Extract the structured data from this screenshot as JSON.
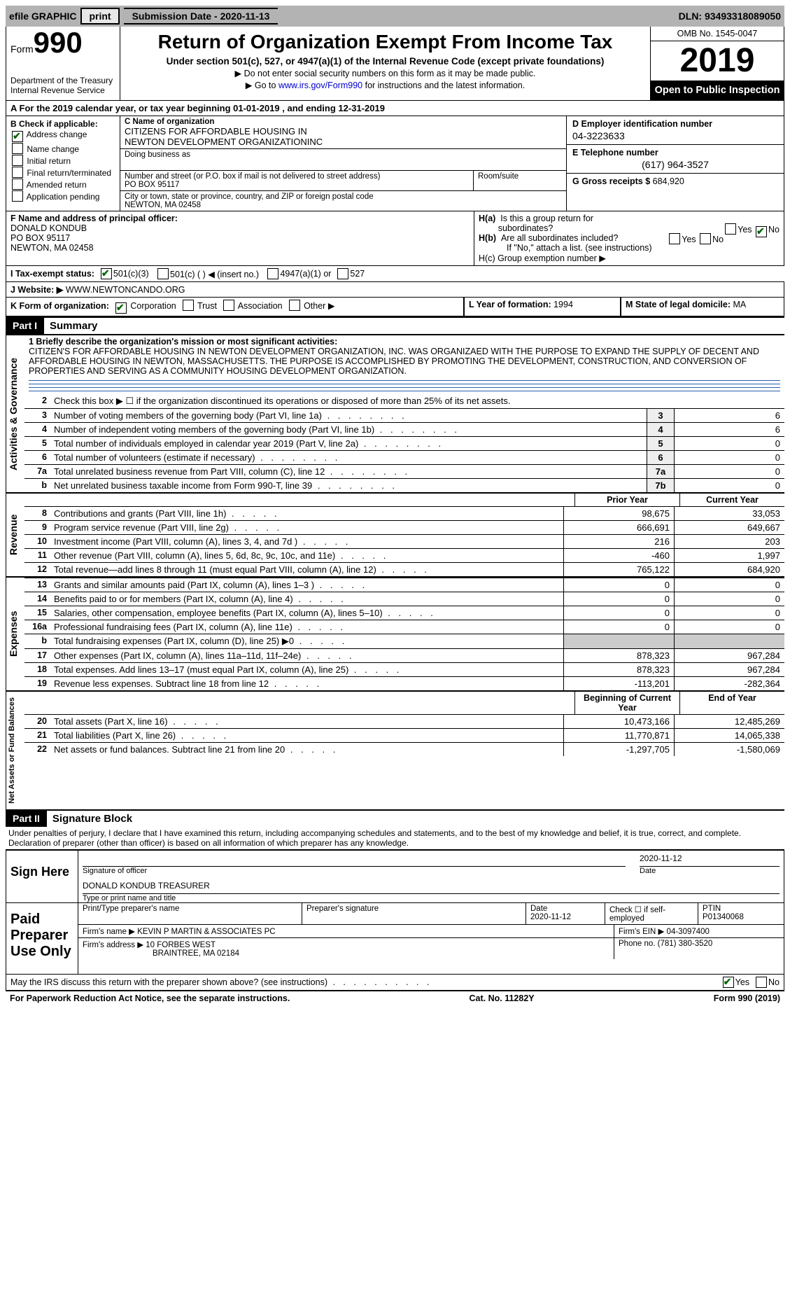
{
  "topbar": {
    "efile": "efile GRAPHIC",
    "print": "print",
    "submission_label": "Submission Date - ",
    "submission_date": "2020-11-13",
    "dln_label": "DLN: ",
    "dln": "93493318089050"
  },
  "header": {
    "form_label": "Form",
    "form_number": "990",
    "dept": "Department of the Treasury\nInternal Revenue Service",
    "title": "Return of Organization Exempt From Income Tax",
    "subtitle": "Under section 501(c), 527, or 4947(a)(1) of the Internal Revenue Code (except private foundations)",
    "instr1": "▶ Do not enter social security numbers on this form as it may be made public.",
    "instr2_pre": "▶ Go to ",
    "instr2_link": "www.irs.gov/Form990",
    "instr2_post": " for instructions and the latest information.",
    "omb": "OMB No. 1545-0047",
    "year": "2019",
    "open_public": "Open to Public Inspection"
  },
  "lineA": {
    "prefix": "A For the 2019 calendar year, or tax year beginning ",
    "begin": "01-01-2019",
    "mid": "  , and ending ",
    "end": "12-31-2019"
  },
  "blockB": {
    "header": "B Check if applicable:",
    "opts": {
      "address_change": "Address change",
      "name_change": "Name change",
      "initial_return": "Initial return",
      "final_return": "Final return/terminated",
      "amended_return": "Amended return",
      "application_pending": "Application pending"
    },
    "checked": [
      "address_change"
    ]
  },
  "blockC": {
    "name_label": "C Name of organization",
    "name1": "CITIZENS FOR AFFORDABLE HOUSING IN",
    "name2": "NEWTON DEVELOPMENT ORGANIZATIONINC",
    "dba_label": "Doing business as",
    "addr_label": "Number and street (or P.O. box if mail is not delivered to street address)",
    "addr": "PO BOX 95117",
    "room_label": "Room/suite",
    "city_label": "City or town, state or province, country, and ZIP or foreign postal code",
    "city": "NEWTON, MA  02458"
  },
  "blockD": {
    "ein_label": "D Employer identification number",
    "ein": "04-3223633",
    "phone_label": "E Telephone number",
    "phone": "(617) 964-3527",
    "gross_label": "G Gross receipts $ ",
    "gross": "684,920"
  },
  "blockF": {
    "label": "F Name and address of principal officer:",
    "name": "DONALD KONDUB",
    "addr1": "PO BOX 95117",
    "addr2": "NEWTON, MA  02458"
  },
  "blockH": {
    "ha": "H(a)  Is this a group return for subordinates?",
    "hb": "H(b)  Are all subordinates included?",
    "hb_note": "If \"No,\" attach a list. (see instructions)",
    "hc": "H(c)  Group exemption number ▶"
  },
  "lineI": {
    "label": "I   Tax-exempt status:",
    "opt1": "501(c)(3)",
    "opt2": "501(c) (    ) ◀ (insert no.)",
    "opt3": "4947(a)(1) or",
    "opt4": "527"
  },
  "lineJ": {
    "label": "J   Website: ▶",
    "value": "WWW.NEWTONCANDO.ORG"
  },
  "lineK": {
    "label": "K Form of organization:",
    "opts": [
      "Corporation",
      "Trust",
      "Association",
      "Other ▶"
    ],
    "L_label": "L Year of formation: ",
    "L_val": "1994",
    "M_label": "M State of legal domicile: ",
    "M_val": "MA"
  },
  "part1": {
    "part_label": "Part I",
    "title": "Summary",
    "ag_label": "Activities & Governance",
    "rev_label": "Revenue",
    "exp_label": "Expenses",
    "na_label": "Net Assets or Fund Balances",
    "line1_label": "1  Briefly describe the organization's mission or most significant activities:",
    "mission": "CITIZEN'S FOR AFFORDABLE HOUSING IN NEWTON DEVELOPMENT ORGANIZATION, INC. WAS ORGANIZAED WITH THE PURPOSE TO EXPAND THE SUPPLY OF DECENT AND AFFORDABLE HOUSING IN NEWTON, MASSACHUSETTS. THE PURPOSE IS ACCOMPLISHED BY PROMOTING THE DEVELOPMENT, CONSTRUCTION, AND CONVERSION OF PROPERTIES AND SERVING AS A COMMUNITY HOUSING DEVELOPMENT ORGANIZATION.",
    "line2": "Check this box ▶ ☐  if the organization discontinued its operations or disposed of more than 25% of its net assets.",
    "rows_ag": [
      {
        "n": "3",
        "d": "Number of voting members of the governing body (Part VI, line 1a)",
        "b": "3",
        "v": "6"
      },
      {
        "n": "4",
        "d": "Number of independent voting members of the governing body (Part VI, line 1b)",
        "b": "4",
        "v": "6"
      },
      {
        "n": "5",
        "d": "Total number of individuals employed in calendar year 2019 (Part V, line 2a)",
        "b": "5",
        "v": "0"
      },
      {
        "n": "6",
        "d": "Total number of volunteers (estimate if necessary)",
        "b": "6",
        "v": "0"
      },
      {
        "n": "7a",
        "d": "Total unrelated business revenue from Part VIII, column (C), line 12",
        "b": "7a",
        "v": "0"
      },
      {
        "n": "b",
        "d": "Net unrelated business taxable income from Form 990-T, line 39",
        "b": "7b",
        "v": "0"
      }
    ],
    "col_prior": "Prior Year",
    "col_current": "Current Year",
    "rows_rev": [
      {
        "n": "8",
        "d": "Contributions and grants (Part VIII, line 1h)",
        "p": "98,675",
        "c": "33,053"
      },
      {
        "n": "9",
        "d": "Program service revenue (Part VIII, line 2g)",
        "p": "666,691",
        "c": "649,667"
      },
      {
        "n": "10",
        "d": "Investment income (Part VIII, column (A), lines 3, 4, and 7d )",
        "p": "216",
        "c": "203"
      },
      {
        "n": "11",
        "d": "Other revenue (Part VIII, column (A), lines 5, 6d, 8c, 9c, 10c, and 11e)",
        "p": "-460",
        "c": "1,997"
      },
      {
        "n": "12",
        "d": "Total revenue—add lines 8 through 11 (must equal Part VIII, column (A), line 12)",
        "p": "765,122",
        "c": "684,920"
      }
    ],
    "rows_exp": [
      {
        "n": "13",
        "d": "Grants and similar amounts paid (Part IX, column (A), lines 1–3 )",
        "p": "0",
        "c": "0"
      },
      {
        "n": "14",
        "d": "Benefits paid to or for members (Part IX, column (A), line 4)",
        "p": "0",
        "c": "0"
      },
      {
        "n": "15",
        "d": "Salaries, other compensation, employee benefits (Part IX, column (A), lines 5–10)",
        "p": "0",
        "c": "0"
      },
      {
        "n": "16a",
        "d": "Professional fundraising fees (Part IX, column (A), line 11e)",
        "p": "0",
        "c": "0"
      },
      {
        "n": "b",
        "d": "Total fundraising expenses (Part IX, column (D), line 25) ▶0",
        "p": "",
        "c": ""
      },
      {
        "n": "17",
        "d": "Other expenses (Part IX, column (A), lines 11a–11d, 11f–24e)",
        "p": "878,323",
        "c": "967,284"
      },
      {
        "n": "18",
        "d": "Total expenses. Add lines 13–17 (must equal Part IX, column (A), line 25)",
        "p": "878,323",
        "c": "967,284"
      },
      {
        "n": "19",
        "d": "Revenue less expenses. Subtract line 18 from line 12",
        "p": "-113,201",
        "c": "-282,364"
      }
    ],
    "col_begin": "Beginning of Current Year",
    "col_end": "End of Year",
    "rows_na": [
      {
        "n": "20",
        "d": "Total assets (Part X, line 16)",
        "p": "10,473,166",
        "c": "12,485,269"
      },
      {
        "n": "21",
        "d": "Total liabilities (Part X, line 26)",
        "p": "11,770,871",
        "c": "14,065,338"
      },
      {
        "n": "22",
        "d": "Net assets or fund balances. Subtract line 21 from line 20",
        "p": "-1,297,705",
        "c": "-1,580,069"
      }
    ]
  },
  "part2": {
    "part_label": "Part II",
    "title": "Signature Block",
    "perjury": "Under penalties of perjury, I declare that I have examined this return, including accompanying schedules and statements, and to the best of my knowledge and belief, it is true, correct, and complete. Declaration of preparer (other than officer) is based on all information of which preparer has any knowledge.",
    "sign_here": "Sign Here",
    "sig_officer_label": "Signature of officer",
    "sig_date": "2020-11-12",
    "date_label": "Date",
    "officer_name": "DONALD KONDUB TREASURER",
    "officer_name_label": "Type or print name and title",
    "paid_prep": "Paid Preparer Use Only",
    "prep_name_label": "Print/Type preparer's name",
    "prep_sig_label": "Preparer's signature",
    "prep_date_label": "Date",
    "prep_date": "2020-11-12",
    "self_emp_label": "Check ☐ if self-employed",
    "ptin_label": "PTIN",
    "ptin": "P01340068",
    "firm_name_label": "Firm's name   ▶ ",
    "firm_name": "KEVIN P MARTIN & ASSOCIATES PC",
    "firm_ein_label": "Firm's EIN ▶ ",
    "firm_ein": "04-3097400",
    "firm_addr_label": "Firm's address ▶ ",
    "firm_addr1": "10 FORBES WEST",
    "firm_addr2": "BRAINTREE, MA  02184",
    "firm_phone_label": "Phone no. ",
    "firm_phone": "(781) 380-3520",
    "discuss": "May the IRS discuss this return with the preparer shown above? (see instructions)",
    "yes": "Yes",
    "no": "No"
  },
  "footer": {
    "left": "For Paperwork Reduction Act Notice, see the separate instructions.",
    "mid": "Cat. No. 11282Y",
    "right": "Form 990 (2019)"
  }
}
